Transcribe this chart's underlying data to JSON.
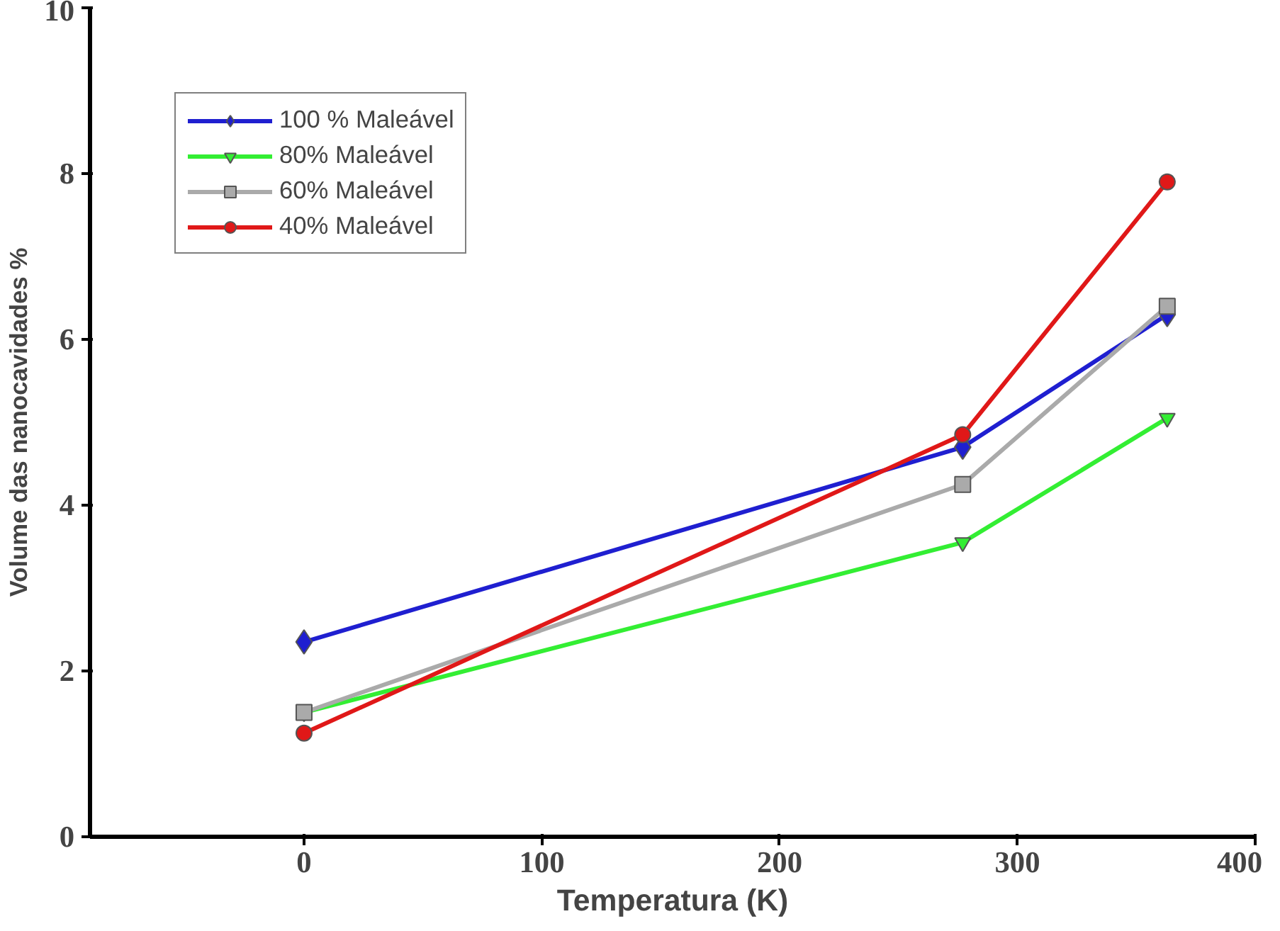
{
  "chart_data": {
    "type": "line",
    "xlabel": "Temperatura (K)",
    "ylabel": "Volume das nanocavidades %",
    "x": [
      0,
      277,
      363
    ],
    "series": [
      {
        "name": "100 % Maleável",
        "color": "#1f1fd0",
        "marker": "diamond",
        "values": [
          2.35,
          4.7,
          6.3
        ]
      },
      {
        "name": "80% Maleável",
        "color": "#33ee33",
        "marker": "triangle",
        "values": [
          1.5,
          3.55,
          5.05
        ]
      },
      {
        "name": "60% Maleável",
        "color": "#aaaaaa",
        "marker": "square",
        "values": [
          1.5,
          4.25,
          6.4
        ]
      },
      {
        "name": "40% Maleável",
        "color": "#e01818",
        "marker": "circle",
        "values": [
          1.25,
          4.85,
          7.9
        ]
      }
    ],
    "xlim": [
      -90,
      400
    ],
    "xticks": [
      0,
      100,
      200,
      300,
      400
    ],
    "ylim": [
      0,
      10
    ],
    "yticks": [
      0,
      2,
      4,
      6,
      8,
      10
    ],
    "grid": false,
    "legend": "top left"
  }
}
